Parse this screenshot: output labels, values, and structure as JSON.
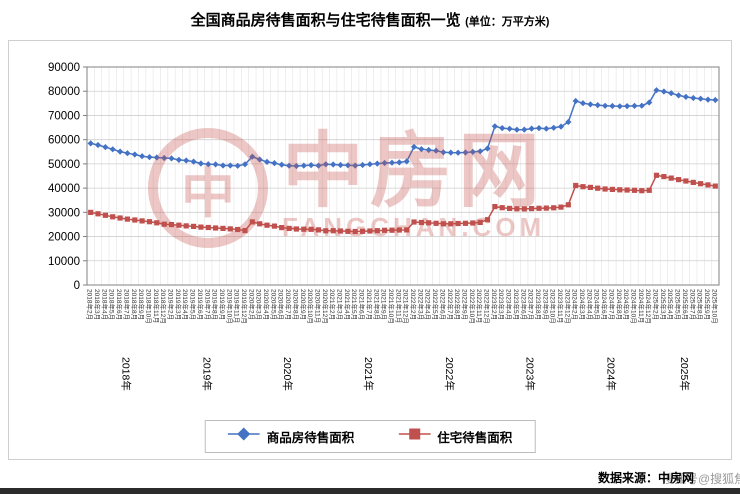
{
  "title": {
    "main": "全国商品房待售面积与住宅待售面积一览",
    "unit": "(单位：万平方米)"
  },
  "watermark": {
    "logo_char": "中",
    "name": "中房网",
    "domain": "FANGCHAN.COM",
    "color": "#c0504d"
  },
  "source": {
    "label": "数据来源：中房网",
    "overlay": "搜狐号@搜狐焦点数据整理"
  },
  "chart_data": {
    "type": "line",
    "title": "全国商品房待售面积与住宅待售面积一览",
    "unit": "万平方米",
    "xlabel": "",
    "ylabel": "",
    "ylim": [
      0,
      90000
    ],
    "yticks": [
      0,
      10000,
      20000,
      30000,
      40000,
      50000,
      60000,
      70000,
      80000,
      90000
    ],
    "grid": true,
    "legend_position": "bottom",
    "x": [
      "2018年2月",
      "2018年3月",
      "2018年4月",
      "2018年5月",
      "2018年6月",
      "2018年7月",
      "2018年8月",
      "2018年9月",
      "2018年10月",
      "2018年11月",
      "2018年12月",
      "2019年2月",
      "2019年3月",
      "2019年4月",
      "2019年5月",
      "2019年6月",
      "2019年7月",
      "2019年8月",
      "2019年9月",
      "2019年10月",
      "2019年11月",
      "2019年12月",
      "2020年2月",
      "2020年3月",
      "2020年4月",
      "2020年5月",
      "2020年6月",
      "2020年7月",
      "2020年8月",
      "2020年9月",
      "2020年10月",
      "2020年11月",
      "2020年12月",
      "2021年2月",
      "2021年3月",
      "2021年4月",
      "2021年5月",
      "2021年6月",
      "2021年7月",
      "2021年8月",
      "2021年9月",
      "2021年10月",
      "2021年11月",
      "2021年12月",
      "2022年2月",
      "2022年3月",
      "2022年4月",
      "2022年5月",
      "2022年6月",
      "2022年7月",
      "2022年8月",
      "2022年9月",
      "2022年10月",
      "2022年11月",
      "2022年12月",
      "2023年2月",
      "2023年3月",
      "2023年4月",
      "2023年5月",
      "2023年6月",
      "2023年7月",
      "2023年8月",
      "2023年9月",
      "2023年10月",
      "2023年11月",
      "2023年12月",
      "2024年2月",
      "2024年3月",
      "2024年4月",
      "2024年5月",
      "2024年6月",
      "2024年7月",
      "2024年8月",
      "2024年9月",
      "2024年10月",
      "2024年11月",
      "2024年12月",
      "2025年2月",
      "2025年3月",
      "2025年4月",
      "2025年5月",
      "2025年6月",
      "2025年7月",
      "2025年8月",
      "2025年9月",
      "2025年10月"
    ],
    "year_groups": [
      {
        "label": "2018年",
        "count": 11
      },
      {
        "label": "2019年",
        "count": 11
      },
      {
        "label": "2020年",
        "count": 11
      },
      {
        "label": "2021年",
        "count": 11
      },
      {
        "label": "2022年",
        "count": 11
      },
      {
        "label": "2023年",
        "count": 11
      },
      {
        "label": "2024年",
        "count": 11
      },
      {
        "label": "2025年",
        "count": 9
      }
    ],
    "series": [
      {
        "name": "商品房待售面积",
        "color": "#4472c4",
        "marker": "diamond",
        "values": [
          58468,
          57780,
          56930,
          56010,
          55083,
          54428,
          53873,
          53191,
          52789,
          52627,
          52414,
          52251,
          51646,
          51380,
          50928,
          50162,
          49876,
          49784,
          49346,
          49323,
          49221,
          49821,
          52987,
          51832,
          50826,
          50332,
          49649,
          49240,
          49114,
          49295,
          49492,
          49287,
          49850,
          49738,
          49526,
          49418,
          49304,
          49547,
          49864,
          50138,
          50372,
          50494,
          50631,
          51023,
          57026,
          56113,
          55735,
          55433,
          54784,
          54655,
          54605,
          54694,
          54934,
          55203,
          56366,
          65528,
          64770,
          64487,
          64120,
          64159,
          64564,
          64795,
          64537,
          64895,
          65376,
          67295,
          75969,
          75069,
          74553,
          74256,
          74001,
          73894,
          73783,
          73861,
          73952,
          74012,
          75327,
          80425,
          79875,
          79163,
          78286,
          77645,
          77188,
          76908,
          76547,
          76385
        ]
      },
      {
        "name": "住宅待售面积",
        "color": "#c0504d",
        "marker": "square",
        "values": [
          29985,
          29400,
          28770,
          28150,
          27640,
          27210,
          26850,
          26470,
          26130,
          25666,
          25091,
          24953,
          24680,
          24396,
          24203,
          23910,
          23718,
          23513,
          23355,
          23142,
          22923,
          22473,
          26038,
          25274,
          24676,
          24296,
          23691,
          23360,
          23121,
          23027,
          22994,
          22751,
          22379,
          22425,
          22279,
          22184,
          22093,
          22186,
          22304,
          22436,
          22568,
          22631,
          22694,
          22761,
          26003,
          25823,
          25681,
          25493,
          25249,
          25276,
          25387,
          25467,
          25590,
          25849,
          26947,
          32371,
          31910,
          31640,
          31450,
          31433,
          31549,
          31662,
          31740,
          31853,
          32176,
          33119,
          41089,
          40580,
          40274,
          39963,
          39652,
          39488,
          39321,
          39205,
          39086,
          38937,
          39088,
          45301,
          44747,
          44141,
          43521,
          42916,
          42358,
          41820,
          41319,
          40817
        ]
      }
    ]
  }
}
